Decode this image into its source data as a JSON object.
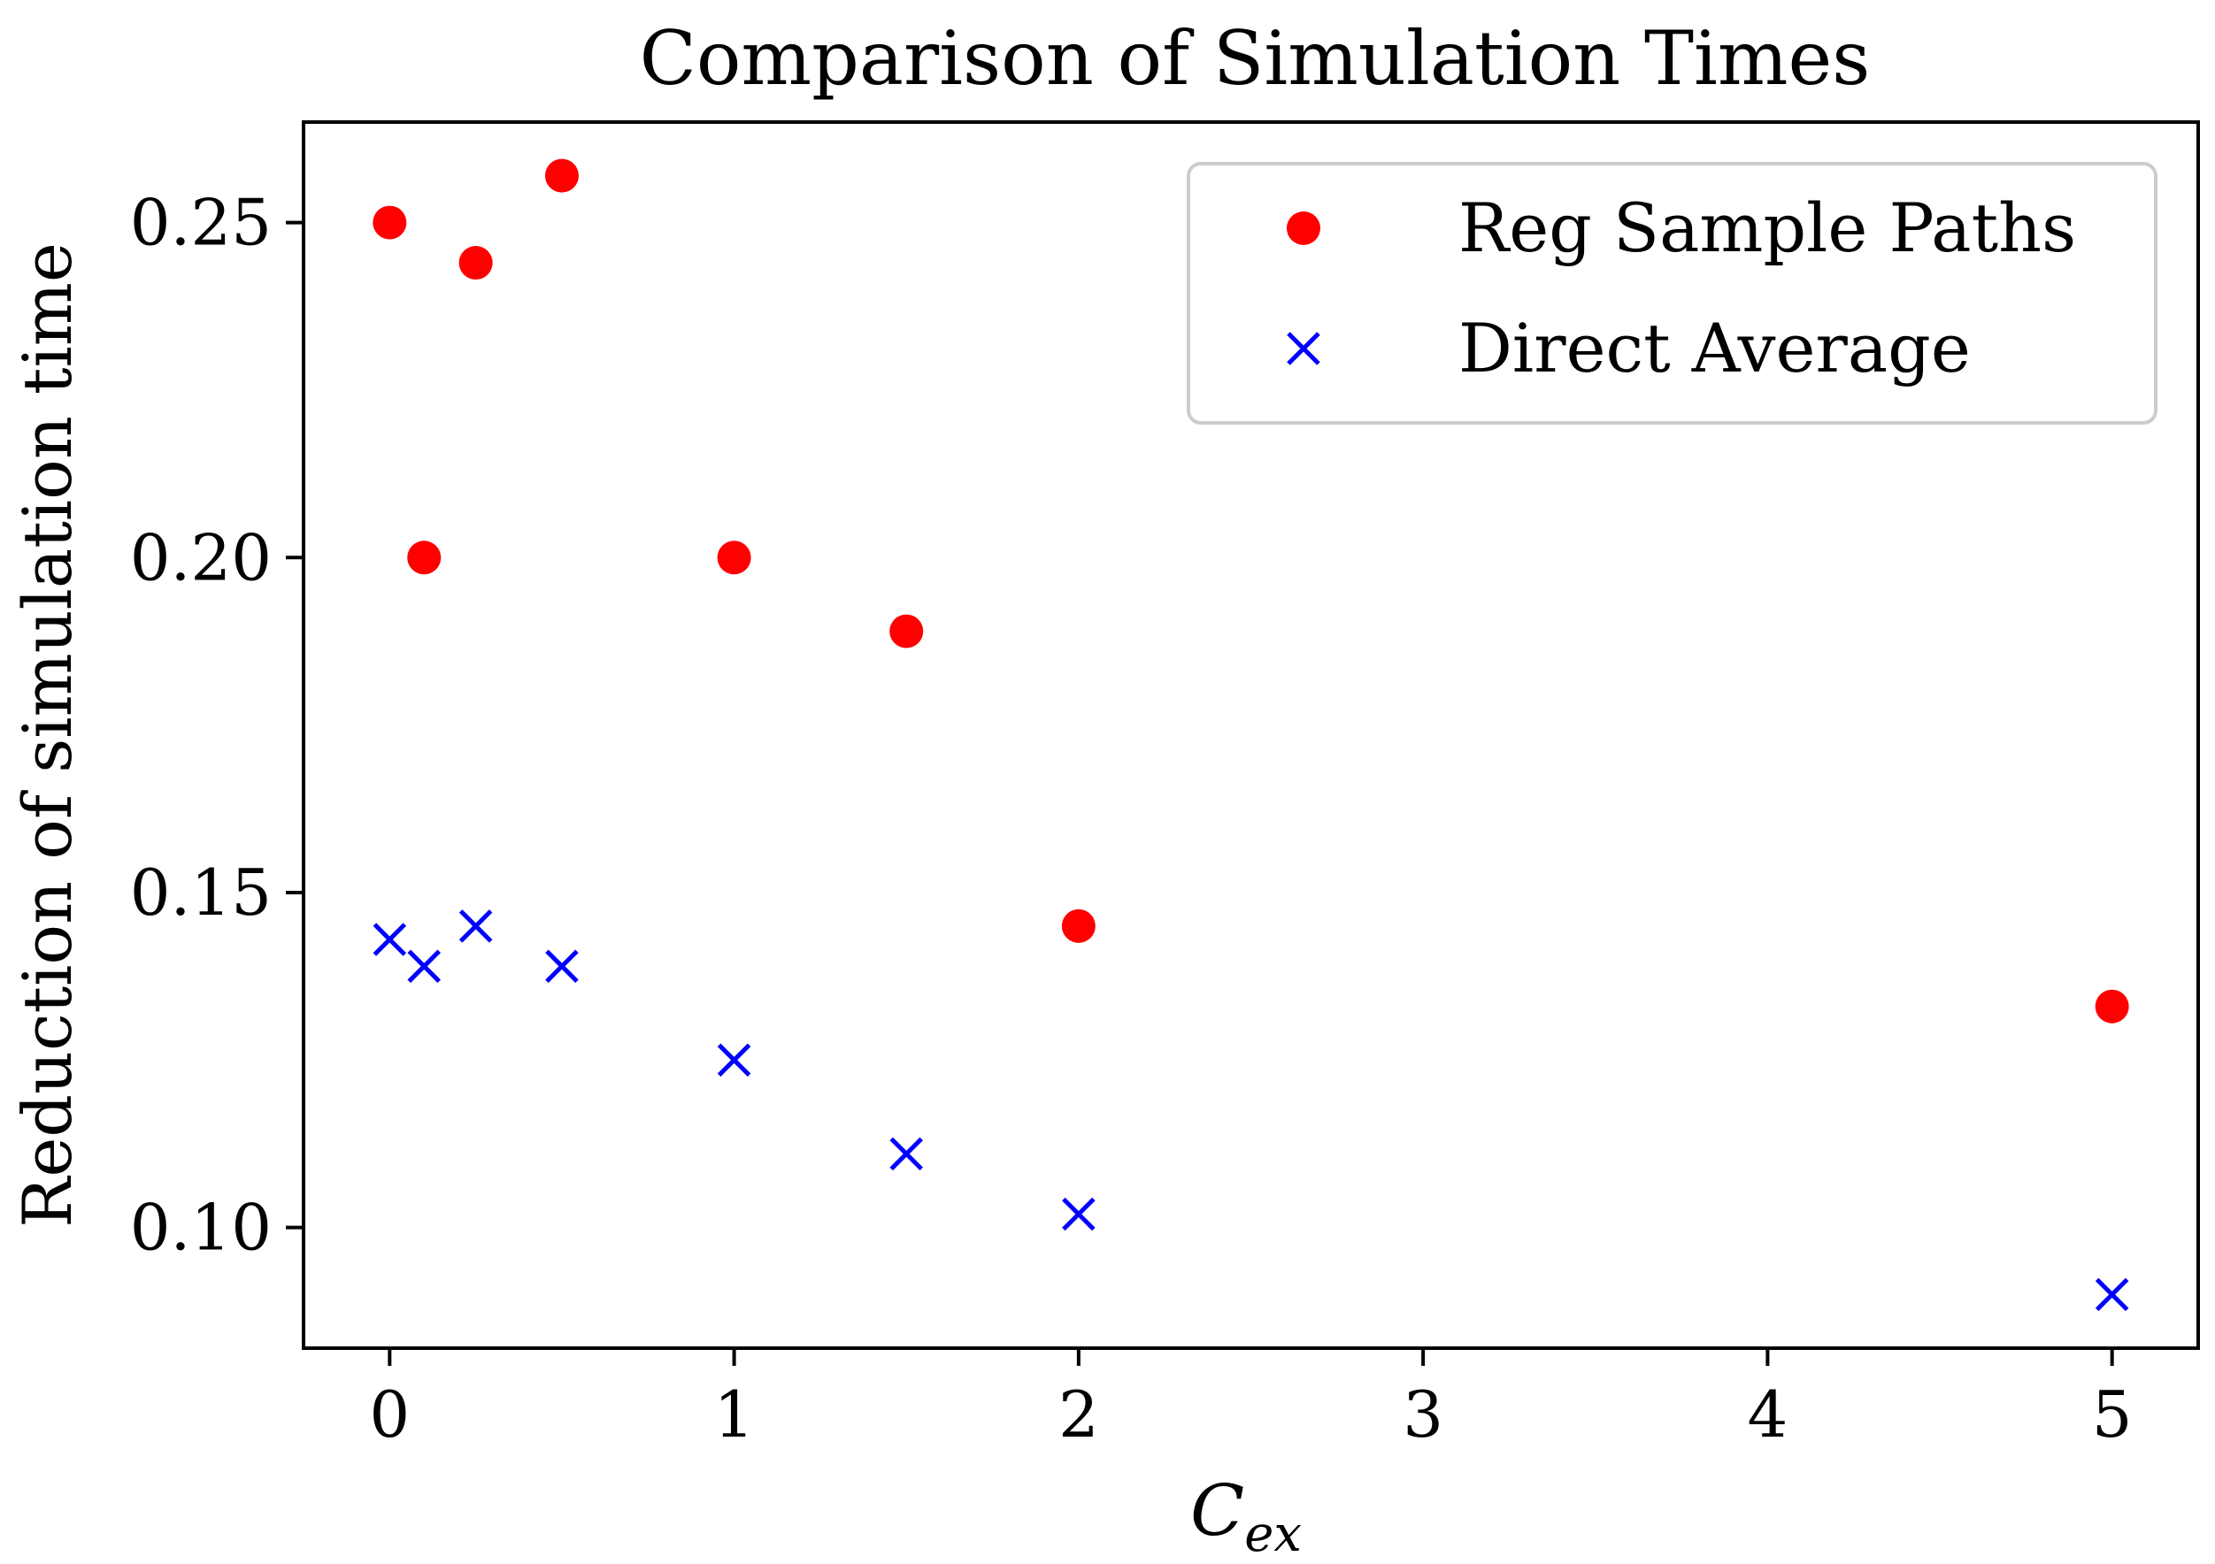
{
  "chart_data": {
    "type": "scatter",
    "title": "Comparison of Simulation Times",
    "xlabel": {
      "main": "C",
      "subscript": "ex"
    },
    "ylabel": "Reduction of simulation time",
    "xlim": [
      -0.25,
      5.25
    ],
    "ylim": [
      0.082,
      0.265
    ],
    "xticks": [
      0,
      1,
      2,
      3,
      4,
      5
    ],
    "xtick_labels": [
      "0",
      "1",
      "2",
      "3",
      "4",
      "5"
    ],
    "yticks": [
      0.1,
      0.15,
      0.2,
      0.25
    ],
    "ytick_labels": [
      "0.10",
      "0.15",
      "0.20",
      "0.25"
    ],
    "grid": false,
    "legend_position": "top-right",
    "series": [
      {
        "name": "Reg Sample Paths",
        "marker": "circle",
        "color": "#ff0000",
        "x": [
          0,
          0.1,
          0.25,
          0.5,
          1,
          1.5,
          2,
          5
        ],
        "y": [
          0.25,
          0.2,
          0.244,
          0.257,
          0.2,
          0.189,
          0.145,
          0.133
        ]
      },
      {
        "name": "Direct Average",
        "marker": "x",
        "color": "#0000ff",
        "x": [
          0,
          0.1,
          0.25,
          0.5,
          1,
          1.5,
          2,
          5
        ],
        "y": [
          0.143,
          0.139,
          0.145,
          0.139,
          0.125,
          0.111,
          0.102,
          0.09
        ]
      }
    ]
  }
}
